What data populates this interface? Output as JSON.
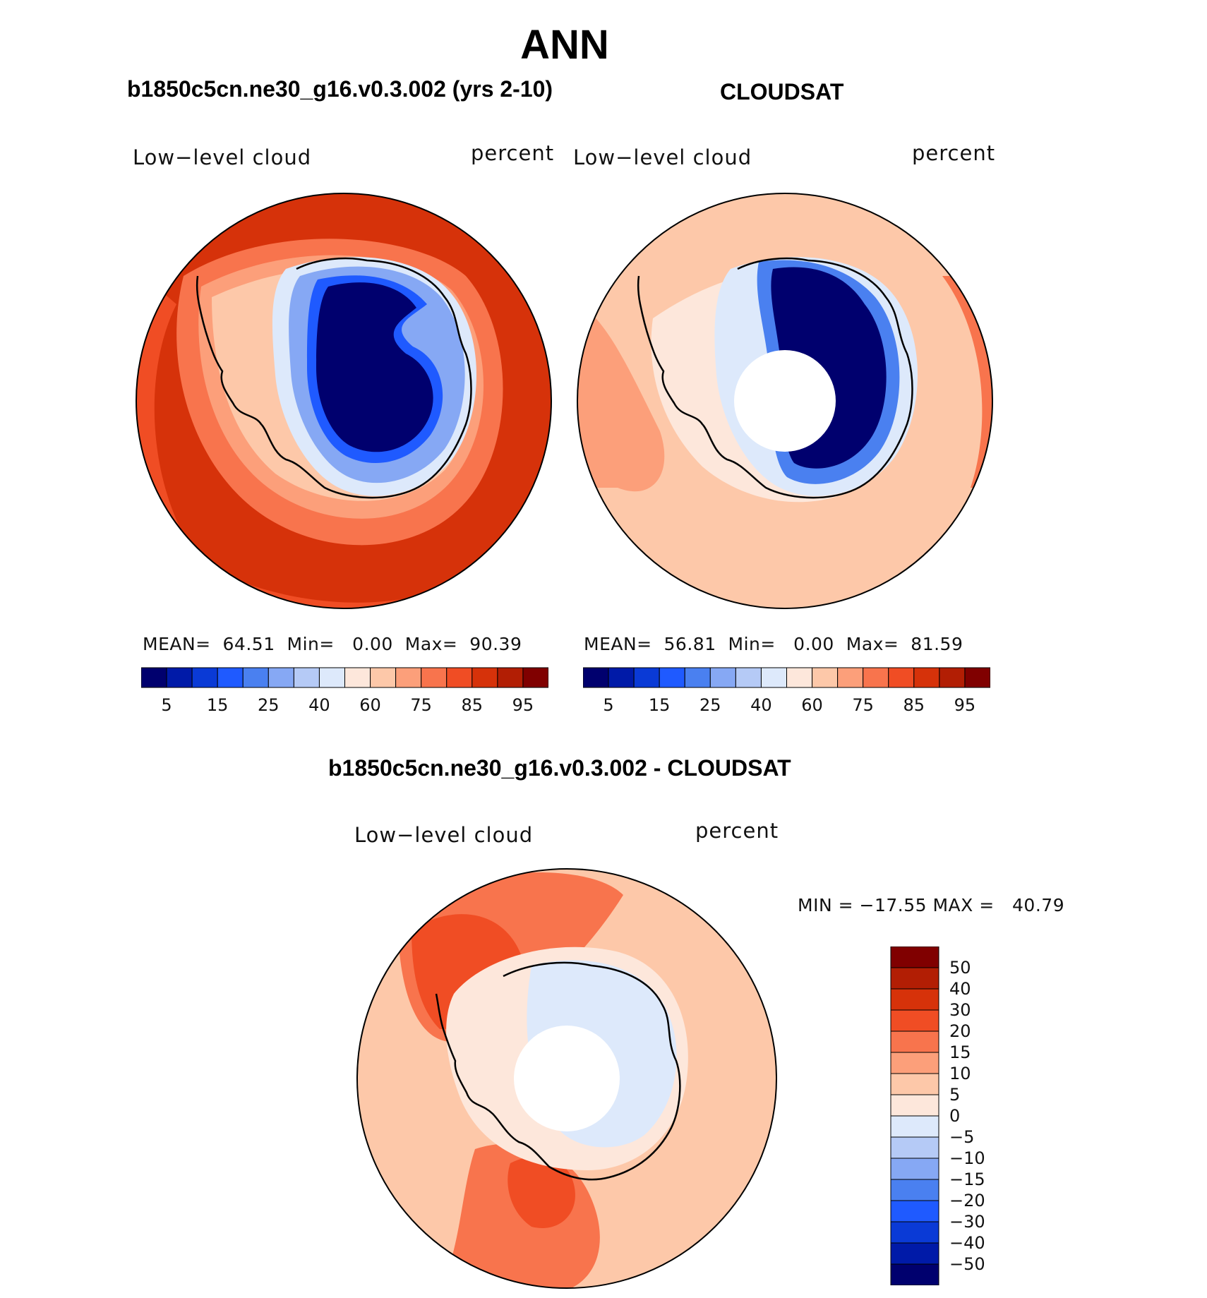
{
  "title": "ANN",
  "colors": {
    "abs_levels": [
      "#00006e",
      "#001aa8",
      "#0a3ad6",
      "#1f5aff",
      "#4a80f0",
      "#86a8f4",
      "#b5caf6",
      "#dde9fb",
      "#fde7db",
      "#fdc8a9",
      "#fc9f7a",
      "#f8744d",
      "#f04d24",
      "#d6320a",
      "#b21e04",
      "#800000"
    ],
    "diff_levels": [
      "#00006e",
      "#001aa8",
      "#0a3ad6",
      "#1f5aff",
      "#4a80f0",
      "#86a8f4",
      "#b5caf6",
      "#dde9fb",
      "#fde7db",
      "#fdc8a9",
      "#fc9f7a",
      "#f8744d",
      "#f04d24",
      "#d6320a",
      "#b21e04",
      "#800000"
    ]
  },
  "panels": [
    {
      "title": "b1850c5cn.ne30_g16.v0.3.002 (yrs 2-10)",
      "variable": "Low−level cloud",
      "units": "percent",
      "stats": {
        "mean_label": "MEAN=",
        "mean": "64.51",
        "min_label": "Min=",
        "min": "0.00",
        "max_label": "Max=",
        "max": "90.39"
      },
      "colorbar_ticks": [
        "5",
        "15",
        "25",
        "40",
        "60",
        "75",
        "85",
        "95"
      ]
    },
    {
      "title": "CLOUDSAT",
      "variable": "Low−level cloud",
      "units": "percent",
      "stats": {
        "mean_label": "MEAN=",
        "mean": "56.81",
        "min_label": "Min=",
        "min": "0.00",
        "max_label": "Max=",
        "max": "81.59"
      },
      "colorbar_ticks": [
        "5",
        "15",
        "25",
        "40",
        "60",
        "75",
        "85",
        "95"
      ]
    }
  ],
  "diff_panel": {
    "title": "b1850c5cn.ne30_g16.v0.3.002 - CLOUDSAT",
    "variable": "Low−level cloud",
    "units": "percent",
    "min_label": "MIN =",
    "min": "−17.55",
    "max_label": "MAX =",
    "max": "40.79",
    "colorbar_ticks": [
      "50",
      "40",
      "30",
      "20",
      "15",
      "10",
      "5",
      "0",
      "−5",
      "−10",
      "−15",
      "−20",
      "−30",
      "−40",
      "−50"
    ]
  },
  "chart_data": [
    {
      "type": "heatmap",
      "title": "b1850c5cn.ne30_g16.v0.3.002 (yrs 2-10)",
      "projection": "south polar stereographic",
      "variable": "Low−level cloud",
      "units": "percent",
      "mean": 64.51,
      "min": 0.0,
      "max": 90.39,
      "contour_levels": [
        5,
        10,
        15,
        20,
        25,
        30,
        40,
        50,
        60,
        70,
        75,
        80,
        85,
        90,
        95
      ]
    },
    {
      "type": "heatmap",
      "title": "CLOUDSAT",
      "projection": "south polar stereographic",
      "variable": "Low−level cloud",
      "units": "percent",
      "mean": 56.81,
      "min": 0.0,
      "max": 81.59,
      "contour_levels": [
        5,
        10,
        15,
        20,
        25,
        30,
        40,
        50,
        60,
        70,
        75,
        80,
        85,
        90,
        95
      ]
    },
    {
      "type": "heatmap",
      "title": "b1850c5cn.ne30_g16.v0.3.002 - CLOUDSAT",
      "projection": "south polar stereographic",
      "variable": "Low−level cloud",
      "units": "percent",
      "min": -17.55,
      "max": 40.79,
      "contour_levels": [
        -50,
        -40,
        -30,
        -20,
        -15,
        -10,
        -5,
        0,
        5,
        10,
        15,
        20,
        30,
        40,
        50
      ]
    }
  ]
}
